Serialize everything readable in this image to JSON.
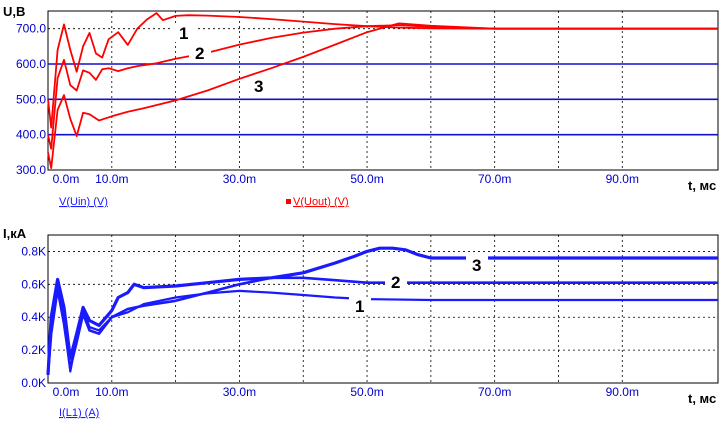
{
  "colors": {
    "voltage": "#ff0000",
    "current": "#1a1aff",
    "axis_text": "#0000cc",
    "reference_line": "#1010c8",
    "grid": "#000000"
  },
  "chart_data": [
    {
      "type": "line",
      "ylabel": "U,В",
      "xlabel": "t, мс",
      "xlim": [
        0,
        105
      ],
      "ylim": [
        300,
        750
      ],
      "x_ticks": [
        {
          "value": 0,
          "label": "0.0m"
        },
        {
          "value": 10,
          "label": "10.0m"
        },
        {
          "value": 30,
          "label": "30.0m"
        },
        {
          "value": 50,
          "label": "50.0m"
        },
        {
          "value": 70,
          "label": "70.0m"
        },
        {
          "value": 90,
          "label": "90.0m"
        }
      ],
      "y_ticks": [
        {
          "value": 300,
          "label": "300.0"
        },
        {
          "value": 400,
          "label": "400.0"
        },
        {
          "value": 500,
          "label": "500.0"
        },
        {
          "value": 600,
          "label": "600.0"
        },
        {
          "value": 700,
          "label": "700.0"
        }
      ],
      "reference_lines": [
        400,
        500,
        600
      ],
      "grid": true,
      "legend_entries": [
        {
          "label": "V(Uin) (V)"
        },
        {
          "label": "V(Uout) (V)"
        }
      ],
      "series": [
        {
          "name": "1",
          "x": [
            0,
            0.5,
            1.5,
            2.5,
            3.5,
            4.5,
            5.5,
            6.5,
            7.5,
            8.5,
            9.5,
            11,
            12.5,
            14,
            15.5,
            17,
            18,
            20,
            22,
            25,
            30,
            35,
            40,
            45,
            50,
            55,
            60,
            70,
            80,
            90,
            105
          ],
          "y": [
            500,
            420,
            640,
            712,
            640,
            578,
            650,
            688,
            630,
            618,
            670,
            690,
            654,
            700,
            726,
            744,
            724,
            736,
            738,
            737,
            733,
            727,
            720,
            713,
            707,
            703,
            701,
            700,
            700,
            700,
            700
          ]
        },
        {
          "name": "2",
          "x": [
            0,
            0.5,
            1.5,
            2.5,
            3.5,
            4.5,
            5.5,
            6.5,
            7.5,
            8.5,
            9.5,
            11,
            12.5,
            14,
            15.5,
            17,
            20,
            25,
            30,
            35,
            40,
            45,
            50,
            55,
            60,
            70,
            80,
            90,
            105
          ],
          "y": [
            400,
            360,
            560,
            612,
            540,
            525,
            582,
            575,
            555,
            585,
            588,
            580,
            588,
            594,
            598,
            602,
            615,
            632,
            655,
            674,
            689,
            700,
            707,
            710,
            705,
            700,
            700,
            700,
            700
          ]
        },
        {
          "name": "3",
          "x": [
            0,
            0.5,
            1.5,
            2.5,
            3.5,
            4.5,
            5.5,
            6.5,
            8,
            10,
            12.5,
            15,
            20,
            25,
            30,
            35,
            40,
            45,
            50,
            55,
            60,
            70,
            80,
            90,
            105
          ],
          "y": [
            350,
            305,
            470,
            512,
            445,
            396,
            462,
            458,
            440,
            452,
            465,
            475,
            497,
            525,
            558,
            588,
            620,
            655,
            690,
            715,
            708,
            700,
            700,
            700,
            700
          ]
        }
      ]
    },
    {
      "type": "line",
      "ylabel": "I,кА",
      "xlabel": "t, мс",
      "xlim": [
        0,
        105
      ],
      "ylim": [
        0,
        0.9
      ],
      "x_ticks": [
        {
          "value": 0,
          "label": "0.0m"
        },
        {
          "value": 10,
          "label": "10.0m"
        },
        {
          "value": 30,
          "label": "30.0m"
        },
        {
          "value": 50,
          "label": "50.0m"
        },
        {
          "value": 70,
          "label": "70.0m"
        },
        {
          "value": 90,
          "label": "90.0m"
        }
      ],
      "y_ticks": [
        {
          "value": 0,
          "label": "0.0K"
        },
        {
          "value": 0.2,
          "label": "0.2K"
        },
        {
          "value": 0.4,
          "label": "0.4K"
        },
        {
          "value": 0.6,
          "label": "0.6K"
        },
        {
          "value": 0.8,
          "label": "0.8K"
        }
      ],
      "grid": true,
      "legend_entries": [
        {
          "label": "I(L1) (A)"
        }
      ],
      "series": [
        {
          "name": "1",
          "x": [
            0,
            0.5,
            1.5,
            2.5,
            3.5,
            4.5,
            5.5,
            6.5,
            8,
            10,
            12.5,
            15,
            20,
            25,
            30,
            35,
            40,
            45,
            50,
            60,
            70,
            80,
            90,
            105
          ],
          "y": [
            0.05,
            0.35,
            0.61,
            0.38,
            0.07,
            0.28,
            0.45,
            0.34,
            0.32,
            0.4,
            0.43,
            0.48,
            0.52,
            0.545,
            0.56,
            0.55,
            0.535,
            0.52,
            0.51,
            0.505,
            0.505,
            0.505,
            0.505,
            0.505
          ]
        },
        {
          "name": "2",
          "x": [
            0,
            0.5,
            1.5,
            2.5,
            3.5,
            4.5,
            5.5,
            6.5,
            8,
            10,
            12.5,
            15,
            20,
            25,
            30,
            35,
            40,
            45,
            50,
            60,
            70,
            80,
            90,
            105
          ],
          "y": [
            0.05,
            0.3,
            0.57,
            0.36,
            0.09,
            0.25,
            0.42,
            0.32,
            0.3,
            0.4,
            0.45,
            0.47,
            0.5,
            0.55,
            0.6,
            0.64,
            0.64,
            0.625,
            0.61,
            0.61,
            0.61,
            0.61,
            0.61,
            0.61
          ]
        },
        {
          "name": "3",
          "x": [
            0,
            0.5,
            1.5,
            2.5,
            3.5,
            4.5,
            5.5,
            6.5,
            8,
            10,
            11,
            12.5,
            13.5,
            15,
            20,
            25,
            30,
            35,
            40,
            45,
            48,
            50,
            52,
            54,
            56,
            58,
            60,
            63,
            70,
            80,
            90,
            105
          ],
          "y": [
            0.05,
            0.4,
            0.63,
            0.46,
            0.15,
            0.3,
            0.46,
            0.38,
            0.35,
            0.44,
            0.52,
            0.55,
            0.6,
            0.58,
            0.59,
            0.61,
            0.63,
            0.64,
            0.67,
            0.73,
            0.77,
            0.8,
            0.82,
            0.82,
            0.81,
            0.78,
            0.76,
            0.76,
            0.76,
            0.76,
            0.76,
            0.76
          ]
        }
      ]
    }
  ]
}
